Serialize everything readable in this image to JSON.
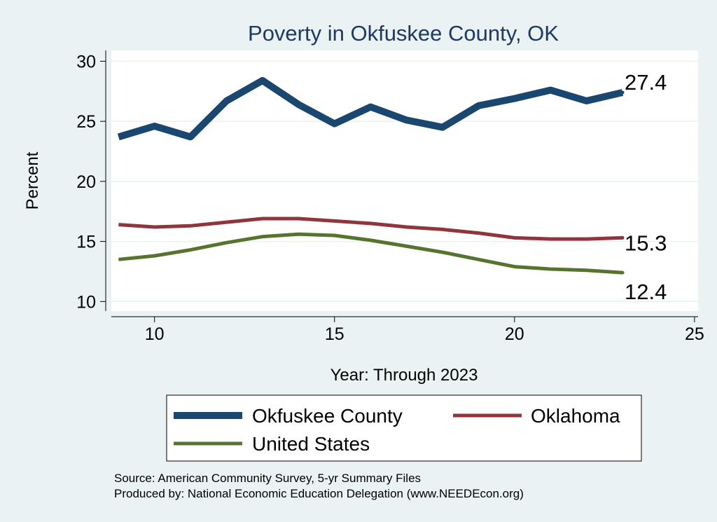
{
  "chart_data": {
    "type": "line",
    "title": "Poverty in Okfuskee County, OK",
    "xlabel": "Year: Through 2023",
    "ylabel": "Percent",
    "x": [
      9,
      10,
      11,
      12,
      13,
      14,
      15,
      16,
      17,
      18,
      19,
      20,
      21,
      22,
      23
    ],
    "xlim": [
      8.8,
      25.1
    ],
    "ylim": [
      9.2,
      30.9
    ],
    "xticks": [
      10,
      15,
      20,
      25
    ],
    "yticks": [
      10,
      15,
      20,
      25,
      30
    ],
    "grid": true,
    "series": [
      {
        "name": "Okfuskee County",
        "color": "#1a476f",
        "values": [
          23.7,
          24.6,
          23.7,
          26.7,
          28.4,
          26.4,
          24.8,
          26.2,
          25.1,
          24.5,
          26.3,
          26.9,
          27.6,
          26.7,
          27.4
        ],
        "end_label": "27.4"
      },
      {
        "name": "Oklahoma",
        "color": "#90353b",
        "values": [
          16.4,
          16.2,
          16.3,
          16.6,
          16.9,
          16.9,
          16.7,
          16.5,
          16.2,
          16.0,
          15.7,
          15.3,
          15.2,
          15.2,
          15.3
        ],
        "end_label": "15.3"
      },
      {
        "name": "United States",
        "color": "#55752f",
        "values": [
          13.5,
          13.8,
          14.3,
          14.9,
          15.4,
          15.6,
          15.5,
          15.1,
          14.6,
          14.1,
          13.5,
          12.9,
          12.7,
          12.6,
          12.4
        ],
        "end_label": "12.4"
      }
    ],
    "legend": {
      "position": "bottom",
      "entries": [
        "Okfuskee County",
        "Oklahoma",
        "United States"
      ]
    },
    "notes": [
      "Source: American Community Survey, 5-yr Summary Files",
      "Produced by: National Economic Education Delegation (www.NEEDEcon.org)"
    ]
  }
}
